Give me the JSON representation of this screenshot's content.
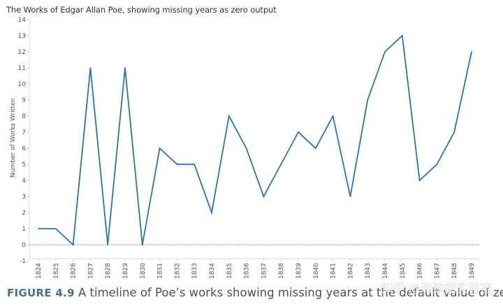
{
  "chart_data": {
    "type": "line",
    "title": "The Works of Edgar Allan Poe, showing missing years as zero output",
    "xlabel": "",
    "ylabel": "Number of Works Written",
    "x": [
      "1824",
      "1825",
      "1826",
      "1827",
      "1828",
      "1829",
      "1830",
      "1831",
      "1832",
      "1833",
      "1834",
      "1835",
      "1836",
      "1837",
      "1838",
      "1839",
      "1840",
      "1841",
      "1842",
      "1843",
      "1844",
      "1845",
      "1846",
      "1847",
      "1848",
      "1849"
    ],
    "series": [
      {
        "values": [
          1,
          1,
          0,
          11,
          0,
          11,
          0,
          6,
          5,
          5,
          2,
          8,
          6,
          3,
          5,
          7,
          6,
          8,
          3,
          9,
          12,
          13,
          4,
          5,
          7,
          12
        ]
      }
    ],
    "ylim": [
      -1,
      14
    ],
    "yticks": [
      "-1",
      "0",
      "1",
      "2",
      "3",
      "4",
      "5",
      "6",
      "7",
      "8",
      "9",
      "10",
      "11",
      "12",
      "13",
      "14"
    ],
    "grid": false,
    "zero_line": true,
    "line_color": "#2c74b0",
    "zero_line_color": "#999999"
  },
  "caption": {
    "label": "FIGURE 4.9",
    "text": "A timeline of Poe’s works showing missing years at the default value of zero."
  },
  "watermark": "知乎 @海数据实验室"
}
